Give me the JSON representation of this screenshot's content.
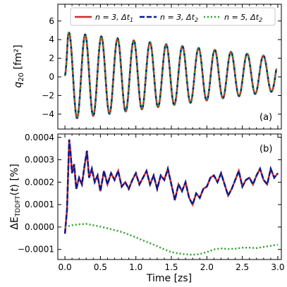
{
  "colors": {
    "series1": "#d62728",
    "series2": "#0a1a8c",
    "series3": "#2ca02c",
    "axes": "#000000",
    "background": "#ffffff"
  },
  "chart_data": [
    {
      "panel_label": "(a)",
      "type": "line",
      "ylabel": "q₂₀ [fm²]",
      "ylabel_main": "q",
      "ylabel_sub": "20",
      "ylabel_unit": "[fm²]",
      "xlim": [
        -0.1,
        3.05
      ],
      "ylim": [
        -5.6,
        7.8
      ],
      "xticks": [
        0.0,
        0.5,
        1.0,
        1.5,
        2.0,
        2.5,
        3.0
      ],
      "yticks": [
        -4,
        -2,
        0,
        2,
        4,
        6
      ],
      "ytick_labels": [
        "−4",
        "−2",
        "0",
        "2",
        "4",
        "6"
      ],
      "legend_position": "top",
      "legend": [
        {
          "main": "n = 3, Δt",
          "sub": "1"
        },
        {
          "main": "n = 3, Δt",
          "sub": "2"
        },
        {
          "main": "n = 5, Δt",
          "sub": "2"
        }
      ],
      "oscillation": {
        "frequency_per_zs": 4.38,
        "amplitude_start": 4.7,
        "amplitude_end": 1.8,
        "offset_start": 0.1,
        "offset_end": 0.3
      }
    },
    {
      "panel_label": "(b)",
      "type": "line",
      "xlabel": "Time [zs]",
      "ylabel": "ΔE_TDDFT(t) [%]",
      "xlim": [
        -0.1,
        3.05
      ],
      "ylim": [
        -0.000145,
        0.000415
      ],
      "xticks": [
        0.0,
        0.5,
        1.0,
        1.5,
        2.0,
        2.5,
        3.0
      ],
      "xtick_labels": [
        "0.0",
        "0.5",
        "1.0",
        "1.5",
        "2.0",
        "2.5",
        "3.0"
      ],
      "yticks": [
        -0.0001,
        0.0,
        0.0001,
        0.0002,
        0.0003,
        0.0004
      ],
      "ytick_labels": [
        "−0.0001",
        "0.0000",
        "0.0001",
        "0.0002",
        "0.0003",
        "0.0004"
      ],
      "series": [
        {
          "legend_index": 0,
          "x": [
            0.0,
            0.03,
            0.06,
            0.08,
            0.1,
            0.13,
            0.16,
            0.2,
            0.24,
            0.28,
            0.31,
            0.34,
            0.38,
            0.42,
            0.46,
            0.5,
            0.55,
            0.6,
            0.65,
            0.7,
            0.75,
            0.8,
            0.85,
            0.9,
            0.95,
            1.0,
            1.05,
            1.1,
            1.15,
            1.2,
            1.25,
            1.3,
            1.35,
            1.4,
            1.45,
            1.5,
            1.55,
            1.6,
            1.65,
            1.7,
            1.75,
            1.8,
            1.85,
            1.9,
            1.95,
            2.0,
            2.05,
            2.1,
            2.15,
            2.2,
            2.25,
            2.3,
            2.35,
            2.4,
            2.45,
            2.5,
            2.55,
            2.6,
            2.65,
            2.7,
            2.75,
            2.8,
            2.85,
            2.9,
            2.95,
            3.0
          ],
          "y": [
            -3e-05,
            8e-05,
            0.00039,
            0.00033,
            0.00024,
            0.00028,
            0.00017,
            0.00022,
            0.00019,
            0.00028,
            0.00034,
            0.00022,
            0.00026,
            0.0002,
            0.00023,
            0.00016,
            0.00025,
            0.00019,
            0.00024,
            0.00021,
            0.00025,
            0.00018,
            0.0002,
            0.00017,
            0.00021,
            0.00024,
            0.00019,
            0.00022,
            0.00025,
            0.00019,
            0.00023,
            0.00017,
            0.00023,
            0.00021,
            0.00026,
            0.00019,
            0.00012,
            0.00019,
            0.00016,
            0.0002,
            0.00013,
            0.0001,
            0.00015,
            0.00013,
            0.00017,
            0.00018,
            0.00022,
            0.00023,
            0.0002,
            0.00024,
            0.00019,
            0.00014,
            0.00017,
            0.00021,
            0.00025,
            0.00018,
            0.00021,
            0.00022,
            0.00019,
            0.00023,
            0.00026,
            0.00021,
            0.00019,
            0.00026,
            0.00022,
            0.00024
          ]
        },
        {
          "legend_index": 1,
          "x": [
            0.0,
            0.03,
            0.06,
            0.08,
            0.1,
            0.13,
            0.16,
            0.2,
            0.24,
            0.28,
            0.31,
            0.34,
            0.38,
            0.42,
            0.46,
            0.5,
            0.55,
            0.6,
            0.65,
            0.7,
            0.75,
            0.8,
            0.85,
            0.9,
            0.95,
            1.0,
            1.05,
            1.1,
            1.15,
            1.2,
            1.25,
            1.3,
            1.35,
            1.4,
            1.45,
            1.5,
            1.55,
            1.6,
            1.65,
            1.7,
            1.75,
            1.8,
            1.85,
            1.9,
            1.95,
            2.0,
            2.05,
            2.1,
            2.15,
            2.2,
            2.25,
            2.3,
            2.35,
            2.4,
            2.45,
            2.5,
            2.55,
            2.6,
            2.65,
            2.7,
            2.75,
            2.8,
            2.85,
            2.9,
            2.95,
            3.0
          ],
          "y": [
            -3e-05,
            8e-05,
            0.00039,
            0.00033,
            0.00024,
            0.00028,
            0.00017,
            0.00022,
            0.00019,
            0.00028,
            0.00034,
            0.00022,
            0.00026,
            0.0002,
            0.00023,
            0.00016,
            0.00025,
            0.00019,
            0.00024,
            0.00021,
            0.00025,
            0.00018,
            0.0002,
            0.00017,
            0.00021,
            0.00024,
            0.00019,
            0.00022,
            0.00025,
            0.00019,
            0.00023,
            0.00017,
            0.00023,
            0.00021,
            0.00026,
            0.00019,
            0.00012,
            0.00019,
            0.00016,
            0.0002,
            0.00013,
            0.0001,
            0.00015,
            0.00013,
            0.00017,
            0.00018,
            0.00022,
            0.00023,
            0.0002,
            0.00024,
            0.00019,
            0.00014,
            0.00017,
            0.00021,
            0.00025,
            0.00018,
            0.00021,
            0.00022,
            0.00019,
            0.00023,
            0.00026,
            0.00021,
            0.00019,
            0.00026,
            0.00022,
            0.00024
          ]
        },
        {
          "legend_index": 2,
          "x": [
            0.0,
            0.1,
            0.2,
            0.3,
            0.4,
            0.5,
            0.6,
            0.7,
            0.8,
            0.9,
            1.0,
            1.1,
            1.2,
            1.3,
            1.4,
            1.5,
            1.6,
            1.7,
            1.8,
            1.9,
            2.0,
            2.1,
            2.2,
            2.3,
            2.4,
            2.5,
            2.6,
            2.7,
            2.8,
            2.9,
            3.0
          ],
          "y": [
            0.0,
            8e-06,
            1.2e-05,
            1.4e-05,
            8e-06,
            2e-06,
            -6e-06,
            -1.4e-05,
            -2.2e-05,
            -3.4e-05,
            -4.6e-05,
            -6e-05,
            -7.2e-05,
            -8.6e-05,
            -0.0001,
            -0.000112,
            -0.000118,
            -0.000122,
            -0.000124,
            -0.000121,
            -0.000112,
            -0.0001,
            -9.6e-05,
            -9.8e-05,
            -9.7e-05,
            -9.2e-05,
            -9.2e-05,
            -9.4e-05,
            -8.9e-05,
            -8.4e-05,
            -7.9e-05
          ]
        }
      ]
    }
  ]
}
